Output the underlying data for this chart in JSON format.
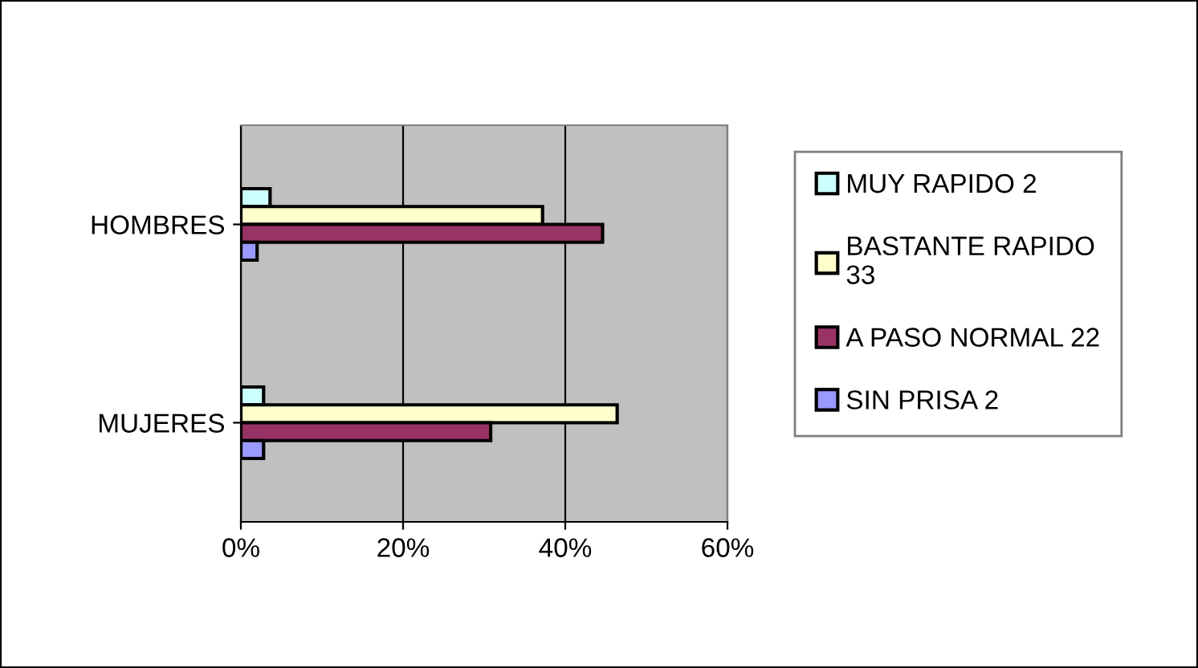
{
  "chart_data": {
    "type": "bar",
    "orientation": "horizontal",
    "categories": [
      "HOMBRES",
      "MUJERES"
    ],
    "series": [
      {
        "name": "MUY RAPIDO 2",
        "color": "#ccffff",
        "values": [
          3.6,
          2.8
        ]
      },
      {
        "name": "BASTANTE RAPIDO\n33",
        "color": "#ffffcc",
        "values": [
          37.2,
          46.4
        ]
      },
      {
        "name": "A PASO NORMAL 22",
        "color": "#993366",
        "values": [
          44.6,
          30.8
        ]
      },
      {
        "name": "SIN PRISA 2",
        "color": "#9999ff",
        "values": [
          2.0,
          2.8
        ]
      }
    ],
    "xlim": [
      0,
      60
    ],
    "xticks": [
      {
        "value": 0,
        "label": "0%"
      },
      {
        "value": 20,
        "label": "20%"
      },
      {
        "value": 40,
        "label": "40%"
      },
      {
        "value": 60,
        "label": "60%"
      }
    ],
    "grid": "x",
    "legend": "right"
  }
}
